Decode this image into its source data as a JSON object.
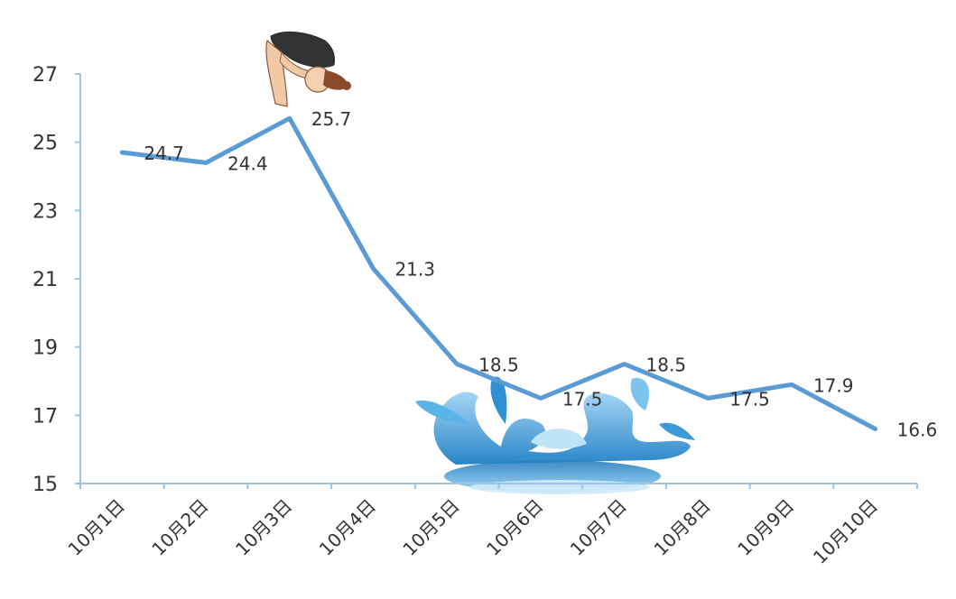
{
  "chart_data": {
    "type": "line",
    "title": "",
    "xlabel": "",
    "ylabel": "",
    "categories": [
      "10月1日",
      "10月2日",
      "10月3日",
      "10月4日",
      "10月5日",
      "10月6日",
      "10月7日",
      "10月8日",
      "10月9日",
      "10月10日"
    ],
    "series": [
      {
        "values": [
          24.7,
          24.4,
          25.7,
          21.3,
          18.5,
          17.5,
          18.5,
          17.5,
          17.9,
          16.6
        ]
      }
    ],
    "data_labels": [
      "24.7",
      "24.4",
      "25.7",
      "21.3",
      "18.5",
      "17.5",
      "18.5",
      "17.5",
      "17.9",
      "16.6"
    ],
    "ylim": [
      15,
      27
    ],
    "yticks": [
      "15",
      "17",
      "19",
      "21",
      "23",
      "25",
      "27"
    ],
    "grid": false,
    "legend": "none",
    "line_color": "#5b9bd5",
    "axis_color": "#9dc3e6",
    "decorations": [
      "diver-illustration",
      "water-splash-illustration"
    ]
  }
}
